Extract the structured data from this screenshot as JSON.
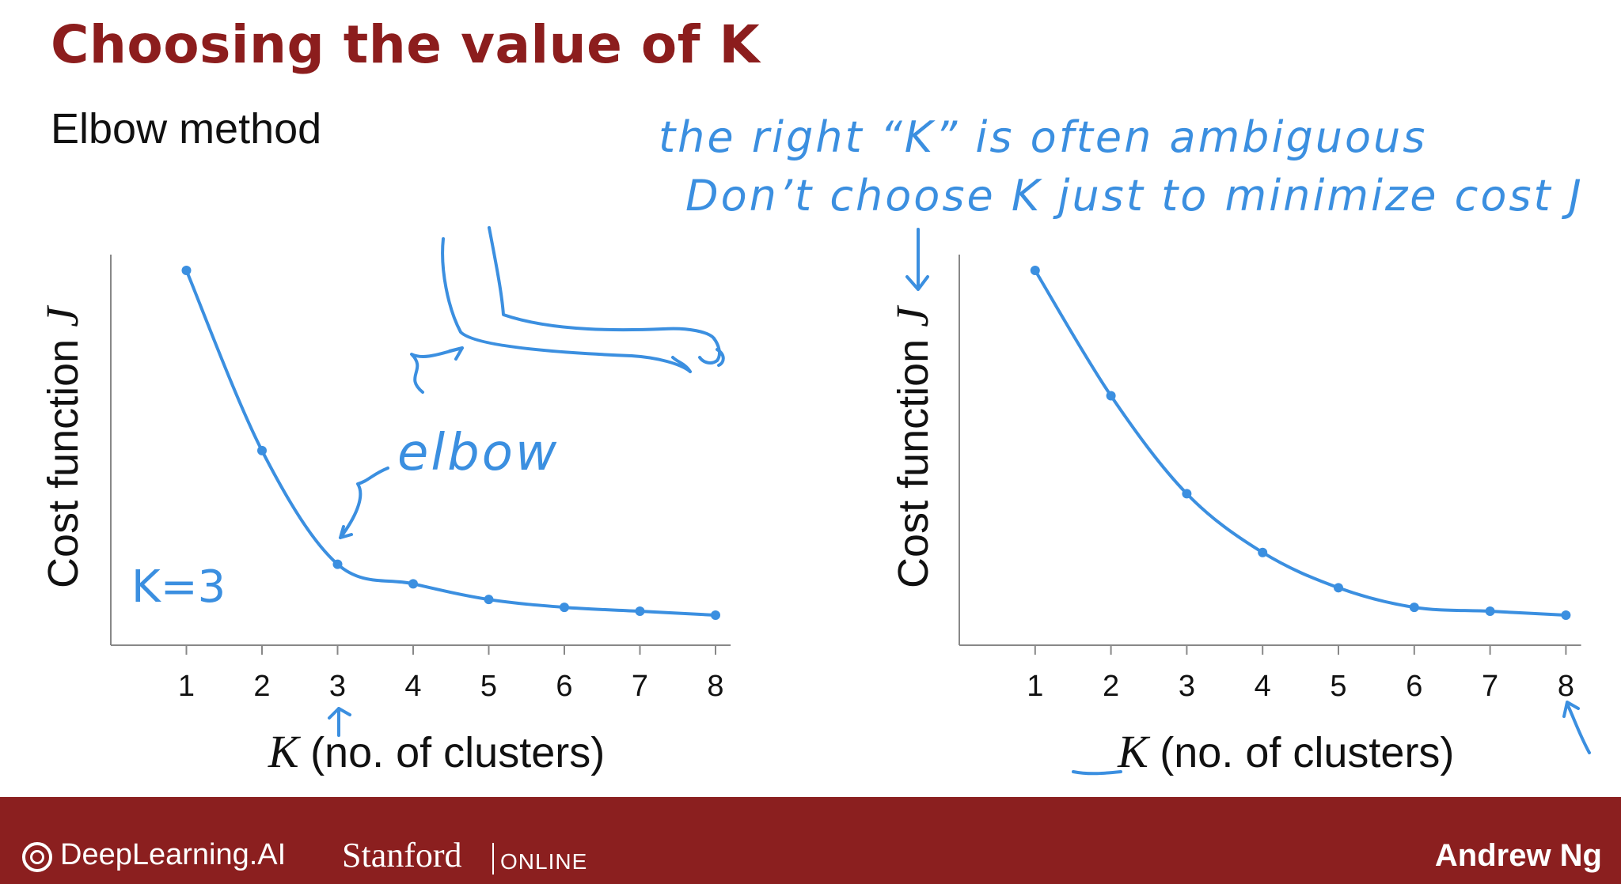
{
  "slide": {
    "title": "Choosing the value of K",
    "subtitle": "Elbow method"
  },
  "annotations": {
    "note_line_1": "the right “K” is often ambiguous",
    "note_line_2": "Don’t choose K just to minimize cost J",
    "elbow_label": "elbow",
    "k_label": "K=3"
  },
  "footer": {
    "logo_text": "DeepLearning.AI",
    "stanford": "Stanford",
    "online": "ONLINE",
    "author": "Andrew Ng"
  },
  "colors": {
    "title": "#8c1d1d",
    "footer_bg": "#8b1f1f",
    "ink": "#3b8fe0"
  },
  "chart_data": [
    {
      "type": "line",
      "x": [
        1,
        2,
        3,
        4,
        5,
        6,
        7,
        8
      ],
      "values": [
        100,
        54,
        25,
        20,
        16,
        14,
        13,
        12
      ],
      "xlabel_var": "K",
      "xlabel": "(no. of clusters)",
      "ylabel": "Cost function",
      "ylabel_var": "J",
      "xlim": [
        0,
        8.2
      ],
      "ylim": [
        0,
        110
      ],
      "grid": false
    },
    {
      "type": "line",
      "x": [
        1,
        2,
        3,
        4,
        5,
        6,
        7,
        8
      ],
      "values": [
        100,
        68,
        43,
        28,
        19,
        14,
        13,
        12
      ],
      "xlabel_var": "K",
      "xlabel": "(no. of clusters)",
      "ylabel": "Cost function",
      "ylabel_var": "J",
      "xlim": [
        0,
        8.2
      ],
      "ylim": [
        0,
        110
      ],
      "grid": false
    }
  ]
}
